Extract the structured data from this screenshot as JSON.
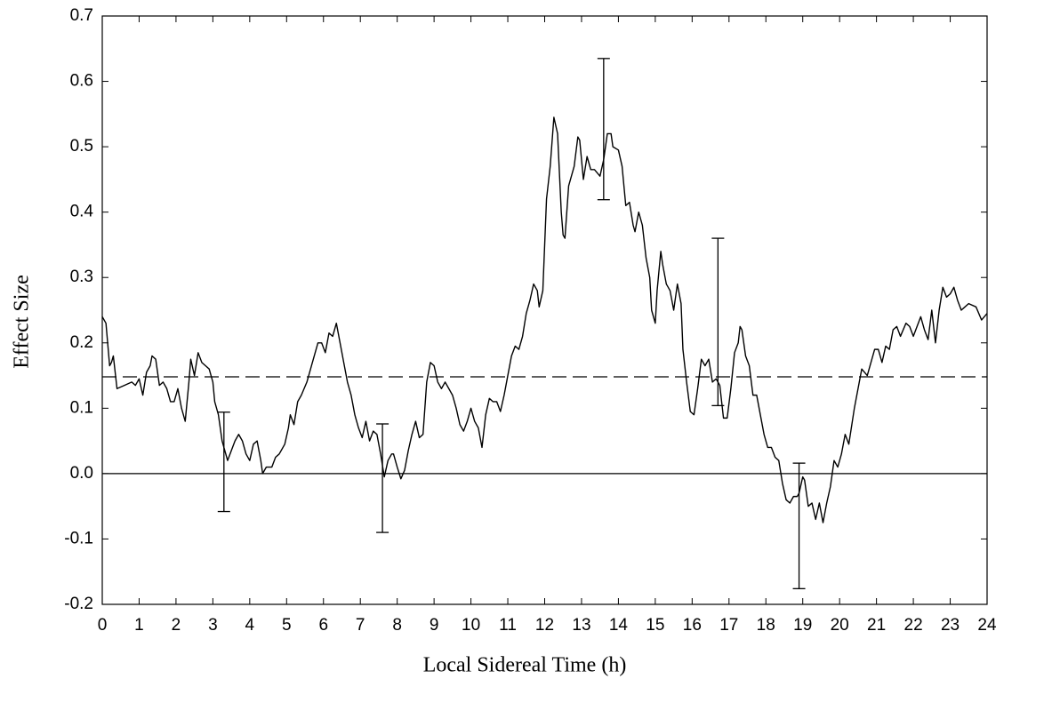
{
  "chart_data": {
    "type": "line",
    "xlabel": "Local Sidereal Time (h)",
    "ylabel": "Effect Size",
    "color": "#000000",
    "x": [
      0,
      0.1,
      0.2,
      0.25,
      0.3,
      0.4,
      0.6,
      0.8,
      0.9,
      1.0,
      1.1,
      1.2,
      1.3,
      1.35,
      1.45,
      1.55,
      1.65,
      1.75,
      1.85,
      1.95,
      2.05,
      2.15,
      2.25,
      2.35,
      2.4,
      2.5,
      2.6,
      2.7,
      2.8,
      2.9,
      3.0,
      3.05,
      3.15,
      3.25,
      3.3,
      3.4,
      3.5,
      3.6,
      3.7,
      3.8,
      3.9,
      4.0,
      4.1,
      4.2,
      4.3,
      4.35,
      4.45,
      4.6,
      4.7,
      4.8,
      4.95,
      5.05,
      5.1,
      5.2,
      5.3,
      5.4,
      5.55,
      5.7,
      5.85,
      5.95,
      6.05,
      6.15,
      6.25,
      6.35,
      6.45,
      6.55,
      6.65,
      6.75,
      6.85,
      6.95,
      7.05,
      7.15,
      7.25,
      7.35,
      7.45,
      7.55,
      7.65,
      7.75,
      7.85,
      7.9,
      8.0,
      8.1,
      8.2,
      8.3,
      8.4,
      8.5,
      8.6,
      8.7,
      8.8,
      8.9,
      9.0,
      9.1,
      9.2,
      9.3,
      9.4,
      9.5,
      9.6,
      9.7,
      9.8,
      9.9,
      10.0,
      10.1,
      10.2,
      10.3,
      10.4,
      10.5,
      10.6,
      10.7,
      10.8,
      10.9,
      11.0,
      11.1,
      11.2,
      11.3,
      11.4,
      11.5,
      11.6,
      11.7,
      11.8,
      11.85,
      11.95,
      12.05,
      12.15,
      12.25,
      12.35,
      12.45,
      12.5,
      12.55,
      12.65,
      12.8,
      12.9,
      12.95,
      13.05,
      13.15,
      13.25,
      13.35,
      13.5,
      13.6,
      13.7,
      13.8,
      13.85,
      14.0,
      14.1,
      14.2,
      14.3,
      14.4,
      14.45,
      14.55,
      14.65,
      14.75,
      14.85,
      14.9,
      15.0,
      15.05,
      15.15,
      15.2,
      15.3,
      15.4,
      15.5,
      15.6,
      15.7,
      15.75,
      15.85,
      15.95,
      16.05,
      16.15,
      16.25,
      16.35,
      16.45,
      16.55,
      16.65,
      16.75,
      16.85,
      16.95,
      17.05,
      17.15,
      17.25,
      17.3,
      17.35,
      17.45,
      17.55,
      17.65,
      17.75,
      17.85,
      17.95,
      18.05,
      18.15,
      18.25,
      18.35,
      18.45,
      18.55,
      18.65,
      18.75,
      18.85,
      18.9,
      19.0,
      19.05,
      19.15,
      19.25,
      19.35,
      19.45,
      19.55,
      19.65,
      19.75,
      19.85,
      19.95,
      20.05,
      20.15,
      20.25,
      20.4,
      20.5,
      20.6,
      20.75,
      20.85,
      20.95,
      21.05,
      21.15,
      21.25,
      21.35,
      21.45,
      21.55,
      21.65,
      21.8,
      21.9,
      22.0,
      22.1,
      22.2,
      22.3,
      22.4,
      22.5,
      22.6,
      22.7,
      22.8,
      22.9,
      23.0,
      23.1,
      23.2,
      23.3,
      23.4,
      23.5,
      23.7,
      23.85,
      24.0
    ],
    "values": [
      0.24,
      0.23,
      0.165,
      0.17,
      0.18,
      0.13,
      0.135,
      0.14,
      0.135,
      0.145,
      0.12,
      0.155,
      0.165,
      0.18,
      0.175,
      0.135,
      0.14,
      0.13,
      0.11,
      0.11,
      0.13,
      0.1,
      0.08,
      0.14,
      0.175,
      0.15,
      0.185,
      0.17,
      0.165,
      0.16,
      0.14,
      0.11,
      0.09,
      0.05,
      0.04,
      0.02,
      0.035,
      0.05,
      0.06,
      0.05,
      0.03,
      0.02,
      0.045,
      0.05,
      0.02,
      0.0,
      0.01,
      0.01,
      0.025,
      0.03,
      0.045,
      0.07,
      0.09,
      0.075,
      0.11,
      0.12,
      0.14,
      0.17,
      0.2,
      0.2,
      0.185,
      0.215,
      0.21,
      0.23,
      0.2,
      0.17,
      0.14,
      0.12,
      0.09,
      0.07,
      0.055,
      0.08,
      0.05,
      0.065,
      0.06,
      0.03,
      -0.005,
      0.02,
      0.03,
      0.03,
      0.01,
      -0.008,
      0.005,
      0.035,
      0.06,
      0.08,
      0.055,
      0.06,
      0.14,
      0.17,
      0.165,
      0.14,
      0.13,
      0.14,
      0.13,
      0.12,
      0.1,
      0.075,
      0.065,
      0.08,
      0.1,
      0.08,
      0.07,
      0.04,
      0.09,
      0.115,
      0.11,
      0.11,
      0.095,
      0.12,
      0.15,
      0.18,
      0.195,
      0.19,
      0.21,
      0.245,
      0.265,
      0.29,
      0.28,
      0.255,
      0.28,
      0.42,
      0.47,
      0.545,
      0.52,
      0.4,
      0.365,
      0.36,
      0.44,
      0.47,
      0.515,
      0.51,
      0.45,
      0.485,
      0.465,
      0.465,
      0.455,
      0.48,
      0.52,
      0.52,
      0.5,
      0.495,
      0.47,
      0.41,
      0.415,
      0.38,
      0.37,
      0.4,
      0.38,
      0.33,
      0.3,
      0.25,
      0.23,
      0.28,
      0.34,
      0.32,
      0.29,
      0.28,
      0.25,
      0.29,
      0.26,
      0.19,
      0.14,
      0.095,
      0.09,
      0.13,
      0.175,
      0.165,
      0.175,
      0.14,
      0.145,
      0.135,
      0.085,
      0.085,
      0.13,
      0.185,
      0.2,
      0.225,
      0.22,
      0.18,
      0.165,
      0.12,
      0.12,
      0.09,
      0.06,
      0.04,
      0.04,
      0.025,
      0.02,
      -0.015,
      -0.04,
      -0.045,
      -0.035,
      -0.035,
      -0.03,
      -0.005,
      -0.01,
      -0.05,
      -0.045,
      -0.07,
      -0.045,
      -0.075,
      -0.045,
      -0.02,
      0.02,
      0.01,
      0.03,
      0.06,
      0.045,
      0.1,
      0.13,
      0.16,
      0.15,
      0.17,
      0.19,
      0.19,
      0.17,
      0.195,
      0.19,
      0.22,
      0.225,
      0.21,
      0.23,
      0.225,
      0.21,
      0.225,
      0.24,
      0.22,
      0.205,
      0.25,
      0.2,
      0.25,
      0.285,
      0.27,
      0.275,
      0.285,
      0.265,
      0.25,
      0.255,
      0.26,
      0.255,
      0.235,
      0.245
    ],
    "error_bars": {
      "x": [
        3.3,
        7.6,
        13.6,
        16.7,
        18.9
      ],
      "values": [
        0.018,
        -0.007,
        0.527,
        0.232,
        -0.08
      ],
      "errors": [
        0.076,
        0.083,
        0.108,
        0.128,
        0.096
      ]
    },
    "reference_lines": [
      {
        "value": 0,
        "style": "solid"
      },
      {
        "value": 0.148,
        "style": "dashed"
      }
    ],
    "xlim": [
      0,
      24
    ],
    "xticks": [
      0,
      1,
      2,
      3,
      4,
      5,
      6,
      7,
      8,
      9,
      10,
      11,
      12,
      13,
      14,
      15,
      16,
      17,
      18,
      19,
      20,
      21,
      22,
      23,
      24
    ],
    "ylim": [
      -0.2,
      0.7
    ],
    "yticks": [
      -0.2,
      -0.1,
      {
        "value": 0,
        "label": "0.0"
      },
      0.1,
      0.2,
      0.3,
      0.4,
      0.5,
      0.6,
      0.7
    ],
    "grid": false
  }
}
